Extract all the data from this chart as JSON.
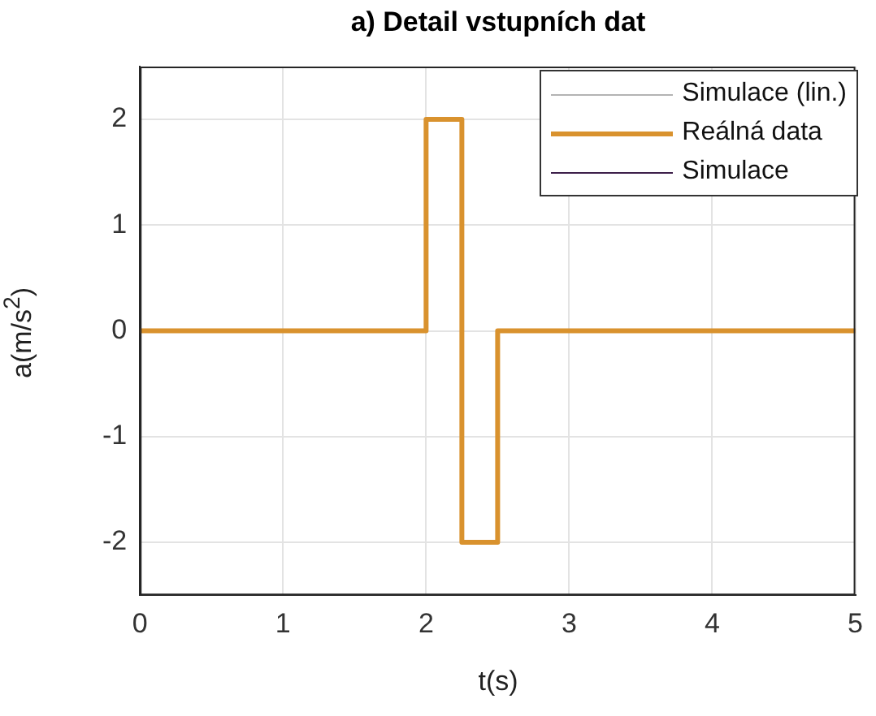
{
  "chart_data": {
    "type": "line",
    "title": "a) Detail vstupních dat",
    "xlabel": "t(s)",
    "ylabel": "a(m/s$^{2}$)",
    "x": [
      0,
      2,
      2,
      2.25,
      2.25,
      2.5,
      2.5,
      5
    ],
    "series": [
      {
        "name": "Simulace (lin.)",
        "color": "#b3b3b3",
        "values": [
          null,
          null,
          null,
          null,
          null,
          null,
          null,
          null
        ]
      },
      {
        "name": "Reálná data",
        "color": "#d9922e",
        "values": [
          0,
          0,
          2,
          2,
          -2,
          -2,
          0,
          0
        ]
      },
      {
        "name": "Simulace",
        "color": "#3d1f4a",
        "values": [
          null,
          null,
          null,
          null,
          null,
          null,
          null,
          null
        ]
      }
    ],
    "xlim": [
      0,
      5
    ],
    "xticks": [
      0,
      1,
      2,
      3,
      4,
      5
    ],
    "ylim": [
      -2.5,
      2.5
    ],
    "yticks": [
      -2,
      -1,
      0,
      1,
      2
    ],
    "grid": true,
    "legend": "top right",
    "marker": "none",
    "line_style": "solid"
  }
}
